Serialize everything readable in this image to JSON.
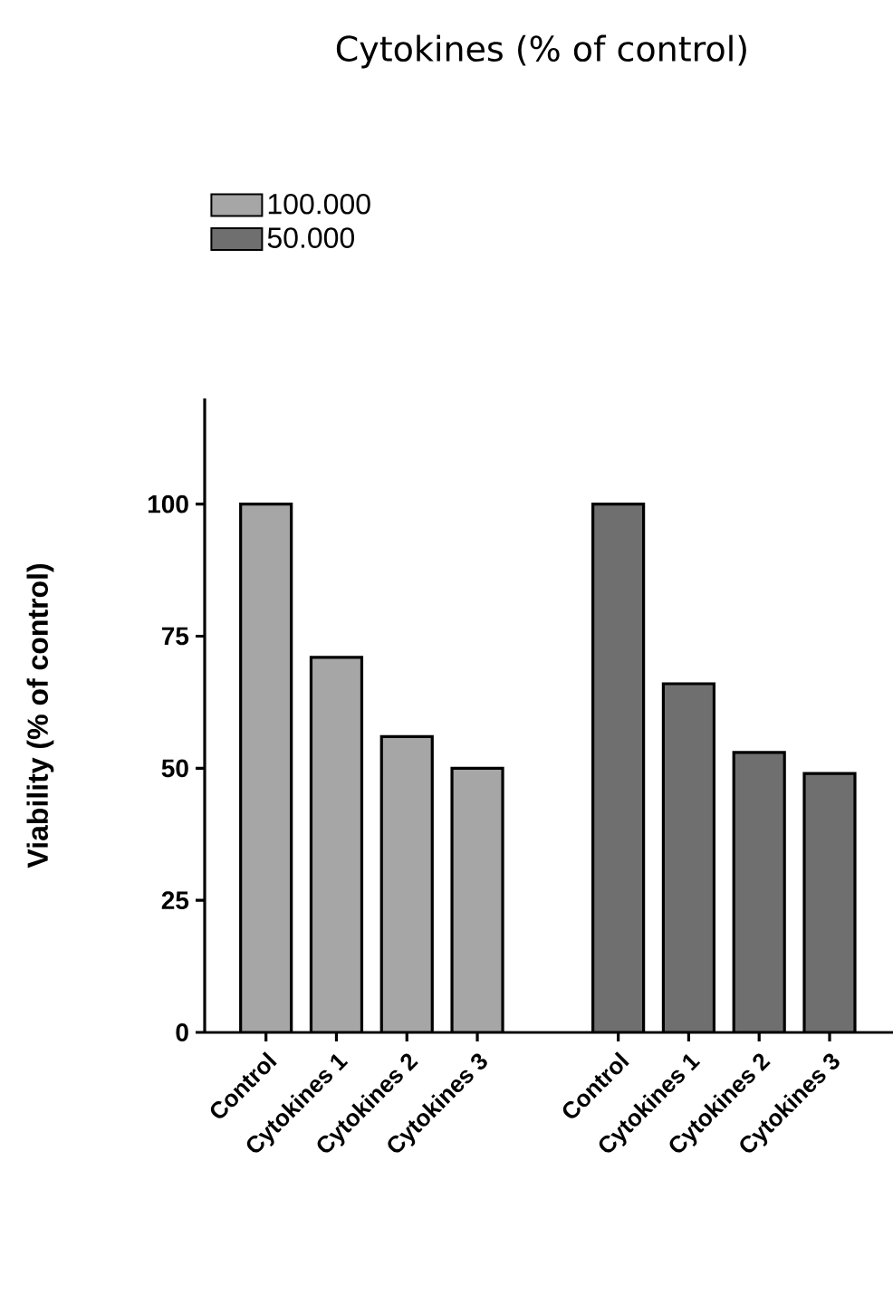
{
  "chart_data": {
    "type": "bar",
    "title": "Cytokines (% of control)",
    "ylabel": "Viability (% of control)",
    "categories": [
      "Control",
      "Cytokines 1",
      "Cytokines 2",
      "Cytokines 3",
      null,
      "Control",
      "Cytokines 1",
      "Cytokines 2",
      "Cytokines 3"
    ],
    "series": [
      {
        "name": "100.000",
        "color": "#a6a6a6",
        "values": [
          100,
          71,
          56,
          50,
          null,
          null,
          null,
          null,
          null
        ]
      },
      {
        "name": "50.000",
        "color": "#6f6f6f",
        "values": [
          null,
          null,
          null,
          null,
          null,
          100,
          66,
          53,
          49
        ]
      }
    ],
    "ylim": [
      0,
      120
    ],
    "yticks": [
      0,
      25,
      50,
      75,
      100
    ],
    "legend": "top left"
  }
}
